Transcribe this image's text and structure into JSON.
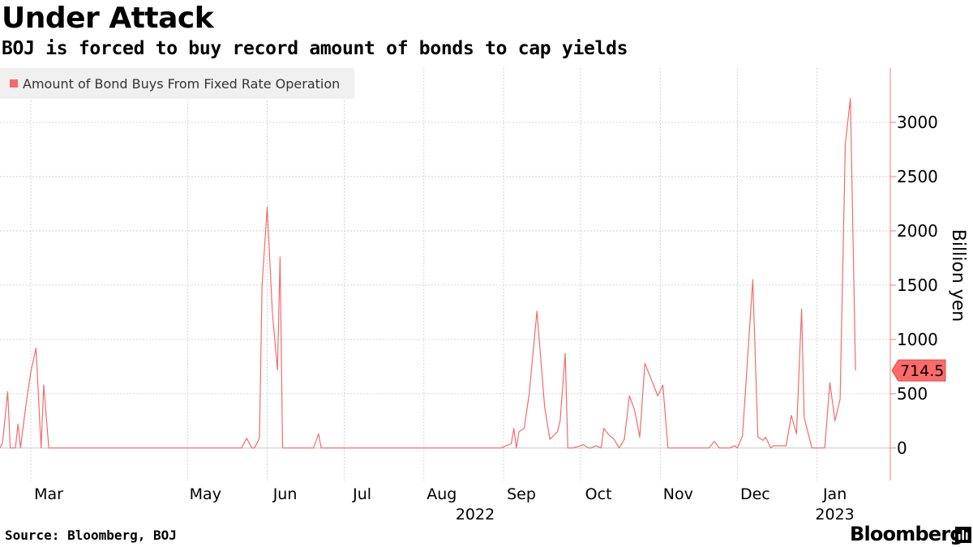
{
  "header": {
    "title": "Under Attack",
    "subtitle": "BOJ is forced to buy record amount of bonds to cap yields"
  },
  "footer": {
    "source": "Source: Bloomberg, BOJ",
    "brand": "Bloomberg"
  },
  "colors": {
    "series": "#f36b6b",
    "label_bg": "#ff6a6a",
    "axis": "#f08080",
    "grid": "#c8c8c8",
    "legend_bg": "#f0f0f0"
  },
  "icons": {
    "brand": "bar-chart-icon"
  },
  "chart_data": {
    "type": "line",
    "title": "Under Attack",
    "subtitle": "BOJ is forced to buy record amount of bonds to cap yields",
    "ylabel": "Billion yen",
    "xlabel": "",
    "ylim": [
      -300,
      3500
    ],
    "yticks": [
      0,
      500,
      1000,
      1500,
      2000,
      2500,
      3000
    ],
    "grid": true,
    "legend": "top-left",
    "x_range": [
      "2022-02-17",
      "2023-01-27"
    ],
    "month_ticks": [
      {
        "label": "Mar",
        "date": "2022-03-01"
      },
      {
        "label": "May",
        "date": "2022-05-01"
      },
      {
        "label": "Jun",
        "date": "2022-06-01"
      },
      {
        "label": "Jul",
        "date": "2022-07-01"
      },
      {
        "label": "Aug",
        "date": "2022-08-01"
      },
      {
        "label": "Sep",
        "date": "2022-09-01"
      },
      {
        "label": "Oct",
        "date": "2022-10-01"
      },
      {
        "label": "Nov",
        "date": "2022-11-01"
      },
      {
        "label": "Dec",
        "date": "2022-12-01"
      },
      {
        "label": "Jan",
        "date": "2023-01-01"
      }
    ],
    "year_labels": [
      {
        "label": "2022",
        "date": "2022-08-14"
      },
      {
        "label": "2023",
        "date": "2023-01-01"
      }
    ],
    "last_value_label": "714.5",
    "series": [
      {
        "name": "Amount of Bond Buys From Fixed Rate Operation",
        "x": [
          "2022-02-17",
          "2022-02-18",
          "2022-02-20",
          "2022-02-21",
          "2022-02-23",
          "2022-02-24",
          "2022-02-25",
          "2022-02-27",
          "2022-03-01",
          "2022-03-03",
          "2022-03-05",
          "2022-03-06",
          "2022-03-08",
          "2022-03-09",
          "2022-03-10",
          "2022-05-22",
          "2022-05-24",
          "2022-05-26",
          "2022-05-27",
          "2022-05-29",
          "2022-05-30",
          "2022-06-01",
          "2022-06-03",
          "2022-06-05",
          "2022-06-06",
          "2022-06-07",
          "2022-06-19",
          "2022-06-21",
          "2022-06-22",
          "2022-08-31",
          "2022-09-02",
          "2022-09-04",
          "2022-09-05",
          "2022-09-06",
          "2022-09-07",
          "2022-09-09",
          "2022-09-11",
          "2022-09-14",
          "2022-09-17",
          "2022-09-19",
          "2022-09-22",
          "2022-09-23",
          "2022-09-25",
          "2022-09-26",
          "2022-09-28",
          "2022-10-01",
          "2022-10-02",
          "2022-10-04",
          "2022-10-05",
          "2022-10-07",
          "2022-10-09",
          "2022-10-10",
          "2022-10-12",
          "2022-10-14",
          "2022-10-16",
          "2022-10-18",
          "2022-10-20",
          "2022-10-22",
          "2022-10-24",
          "2022-10-26",
          "2022-10-31",
          "2022-11-02",
          "2022-11-04",
          "2022-11-20",
          "2022-11-22",
          "2022-11-24",
          "2022-11-25",
          "2022-11-26",
          "2022-11-28",
          "2022-11-30",
          "2022-12-01",
          "2022-12-03",
          "2022-12-07",
          "2022-12-09",
          "2022-12-11",
          "2022-12-12",
          "2022-12-14",
          "2022-12-15",
          "2022-12-18",
          "2022-12-20",
          "2022-12-22",
          "2022-12-24",
          "2022-12-26",
          "2022-12-27",
          "2022-12-30",
          "2023-01-02",
          "2023-01-04",
          "2023-01-06",
          "2023-01-08",
          "2023-01-10",
          "2023-01-12",
          "2023-01-14",
          "2023-01-16"
        ],
        "y": [
          0,
          50,
          520,
          0,
          0,
          220,
          0,
          380,
          700,
          920,
          0,
          580,
          0,
          0,
          0,
          0,
          90,
          0,
          0,
          90,
          1500,
          2220,
          1250,
          720,
          1760,
          0,
          0,
          130,
          0,
          0,
          20,
          40,
          180,
          0,
          150,
          180,
          500,
          1260,
          380,
          80,
          150,
          250,
          870,
          0,
          0,
          20,
          30,
          0,
          0,
          20,
          0,
          180,
          120,
          80,
          0,
          80,
          480,
          350,
          100,
          780,
          480,
          580,
          0,
          0,
          60,
          0,
          0,
          0,
          0,
          20,
          0,
          110,
          1550,
          100,
          70,
          100,
          0,
          20,
          20,
          20,
          300,
          130,
          1280,
          280,
          0,
          0,
          0,
          600,
          250,
          450,
          2800,
          3220,
          714.5
        ]
      }
    ]
  }
}
